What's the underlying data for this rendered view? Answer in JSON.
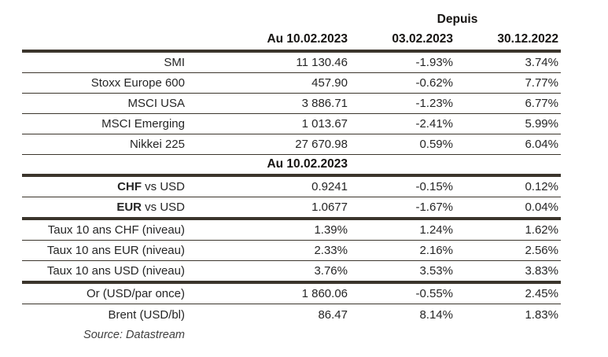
{
  "colors": {
    "line": "#3b352c",
    "body_text": "#252525",
    "header_text": "#161412",
    "source_text": "#3f3f3f",
    "background": "#ffffff"
  },
  "table": {
    "header": {
      "depuis": "Depuis",
      "date_current": "Au 10.02.2023",
      "date_week": "03.02.2023",
      "date_year": "30.12.2022"
    },
    "section2_header": "Au 10.02.2023",
    "rows": [
      {
        "label_bold": "",
        "label": "SMI",
        "current": "11 130.46",
        "since_week": "-1.93%",
        "since_year": "3.74%"
      },
      {
        "label_bold": "",
        "label": "Stoxx Europe 600",
        "current": "457.90",
        "since_week": "-0.62%",
        "since_year": "7.77%"
      },
      {
        "label_bold": "",
        "label": "MSCI USA",
        "current": "3 886.71",
        "since_week": "-1.23%",
        "since_year": "6.77%"
      },
      {
        "label_bold": "",
        "label": "MSCI Emerging",
        "current": "1 013.67",
        "since_week": "-2.41%",
        "since_year": "5.99%"
      },
      {
        "label_bold": "",
        "label": "Nikkei 225",
        "current": "27 670.98",
        "since_week": "0.59%",
        "since_year": "6.04%"
      },
      {
        "label_bold": "CHF",
        "label": " vs USD",
        "current": "0.9241",
        "since_week": "-0.15%",
        "since_year": "0.12%"
      },
      {
        "label_bold": "EUR",
        "label": " vs USD",
        "current": "1.0677",
        "since_week": "-1.67%",
        "since_year": "0.04%"
      },
      {
        "label_bold": "",
        "label": "Taux 10 ans CHF (niveau)",
        "current": "1.39%",
        "since_week": "1.24%",
        "since_year": "1.62%"
      },
      {
        "label_bold": "",
        "label": "Taux 10 ans EUR (niveau)",
        "current": "2.33%",
        "since_week": "2.16%",
        "since_year": "2.56%"
      },
      {
        "label_bold": "",
        "label": "Taux 10 ans USD (niveau)",
        "current": "3.76%",
        "since_week": "3.53%",
        "since_year": "3.83%"
      },
      {
        "label_bold": "",
        "label": "Or (USD/par once)",
        "current": "1 860.06",
        "since_week": "-0.55%",
        "since_year": "2.45%"
      },
      {
        "label_bold": "",
        "label": "Brent (USD/bl)",
        "current": "86.47",
        "since_week": "8.14%",
        "since_year": "1.83%"
      }
    ],
    "source": "Source: Datastream"
  }
}
